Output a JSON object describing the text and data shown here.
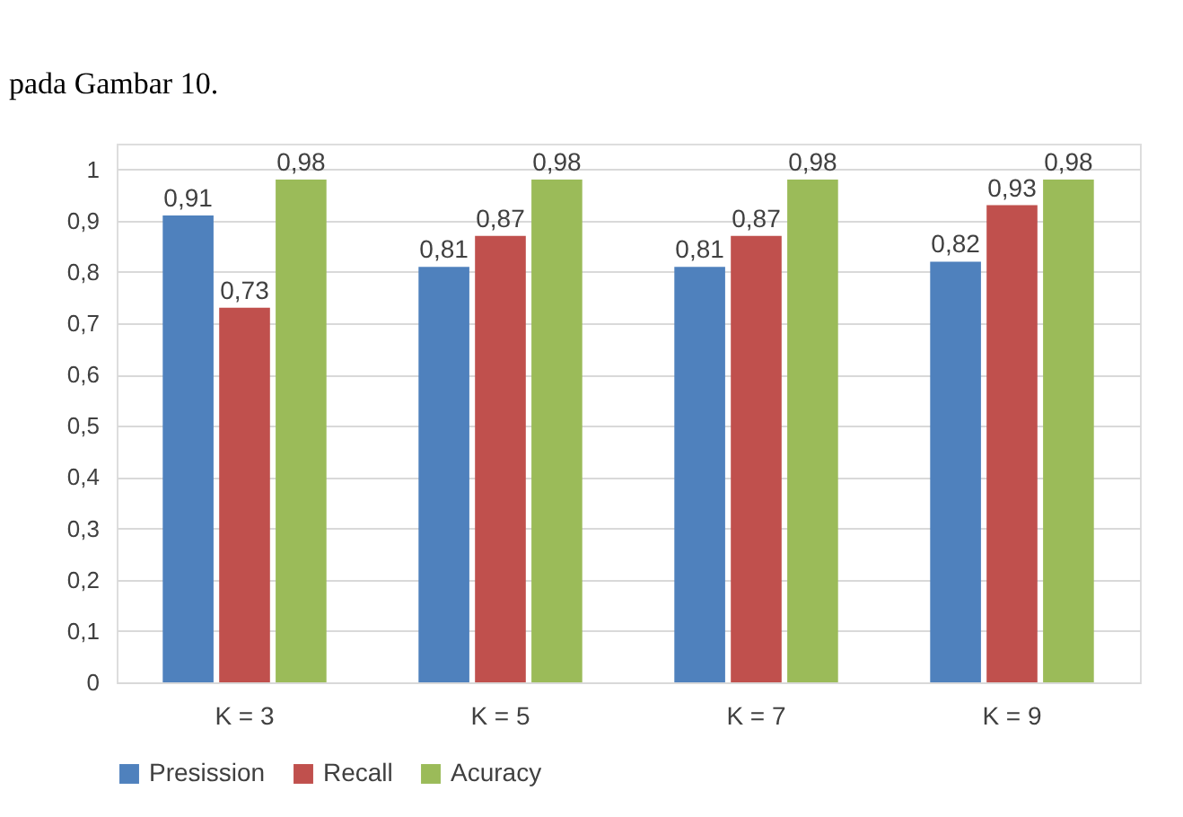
{
  "chart_data": {
    "type": "bar",
    "annotations": [
      "pada Gambar 10."
    ],
    "categories": [
      "K = 3",
      "K = 5",
      "K = 7",
      "K = 9"
    ],
    "series": [
      {
        "name": "Presission",
        "color": "#4f81bd",
        "values": [
          0.91,
          0.81,
          0.81,
          0.82
        ],
        "value_labels": [
          "0,91",
          "0,81",
          "0,81",
          "0,82"
        ]
      },
      {
        "name": "Recall",
        "color": "#c0504d",
        "values": [
          0.73,
          0.87,
          0.87,
          0.93
        ],
        "value_labels": [
          "0,73",
          "0,87",
          "0,87",
          "0,93"
        ]
      },
      {
        "name": "Acuracy",
        "color": "#9bbb59",
        "values": [
          0.98,
          0.98,
          0.98,
          0.98
        ],
        "value_labels": [
          "0,98",
          "0,98",
          "0,98",
          "0,98"
        ]
      }
    ],
    "ylim": [
      0,
      1.05
    ],
    "yticks": [
      0,
      {
        "value": 0.1,
        "label": "0,1"
      },
      {
        "value": 0.2,
        "label": "0,2"
      },
      {
        "value": 0.3,
        "label": "0,3"
      },
      {
        "value": 0.4,
        "label": "0,4"
      },
      {
        "value": 0.5,
        "label": "0,5"
      },
      {
        "value": 0.6,
        "label": "0,6"
      },
      {
        "value": 0.7,
        "label": "0,7"
      },
      {
        "value": 0.8,
        "label": "0,8"
      },
      {
        "value": 0.9,
        "label": "0,9"
      },
      1
    ],
    "grid": "y",
    "legend": "bottom"
  }
}
